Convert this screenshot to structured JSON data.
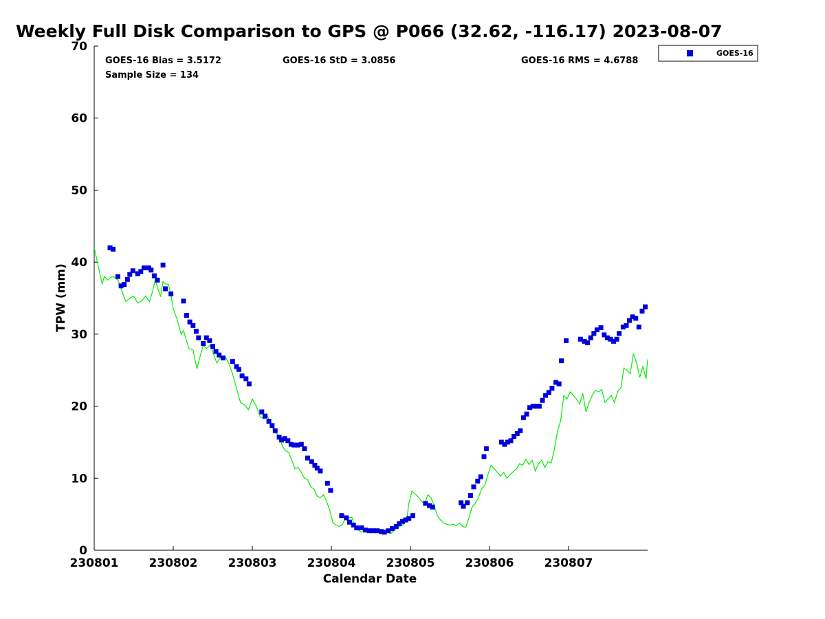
{
  "chart_data": {
    "type": "scatter",
    "title": "Weekly Full Disk Comparison to GPS @ P066 (32.62, -116.17) 2023-08-07",
    "xlabel": "Calendar Date",
    "ylabel": "TPW (mm)",
    "xlim": [
      0,
      7
    ],
    "ylim": [
      0,
      70
    ],
    "x_ticks": [
      0,
      1,
      2,
      3,
      4,
      5,
      6
    ],
    "x_tick_labels": [
      "230801",
      "230802",
      "230803",
      "230804",
      "230805",
      "230806",
      "230807"
    ],
    "y_ticks": [
      0,
      10,
      20,
      30,
      40,
      50,
      60,
      70
    ],
    "y_tick_labels": [
      "0",
      "10",
      "20",
      "30",
      "40",
      "50",
      "60",
      "70"
    ],
    "grid": false,
    "legend": {
      "position": "top-right",
      "entries": [
        "GOES-16"
      ]
    },
    "colors": {
      "goes": "#0000dd",
      "gps": "#00ee00"
    },
    "stats": {
      "bias": "GOES-16 Bias = 3.5172",
      "sample": "Sample Size = 134",
      "std": "GOES-16 StD = 3.0856",
      "rms": "GOES-16 RMS = 4.6788"
    },
    "series": [
      {
        "name": "GOES-16",
        "marker": "square",
        "points": [
          [
            0.2,
            42.0
          ],
          [
            0.24,
            41.8
          ],
          [
            0.3,
            38.0
          ],
          [
            0.34,
            36.7
          ],
          [
            0.38,
            36.9
          ],
          [
            0.42,
            37.6
          ],
          [
            0.45,
            38.3
          ],
          [
            0.49,
            38.8
          ],
          [
            0.55,
            38.4
          ],
          [
            0.59,
            38.7
          ],
          [
            0.63,
            39.2
          ],
          [
            0.69,
            39.2
          ],
          [
            0.72,
            38.9
          ],
          [
            0.76,
            38.1
          ],
          [
            0.8,
            37.5
          ],
          [
            0.87,
            39.6
          ],
          [
            0.9,
            36.3
          ],
          [
            0.97,
            35.6
          ],
          [
            1.13,
            34.6
          ],
          [
            1.17,
            32.6
          ],
          [
            1.21,
            31.7
          ],
          [
            1.25,
            31.2
          ],
          [
            1.29,
            30.4
          ],
          [
            1.32,
            29.5
          ],
          [
            1.38,
            28.7
          ],
          [
            1.42,
            29.5
          ],
          [
            1.46,
            29.1
          ],
          [
            1.5,
            28.3
          ],
          [
            1.54,
            27.6
          ],
          [
            1.58,
            27.1
          ],
          [
            1.63,
            26.7
          ],
          [
            1.75,
            26.2
          ],
          [
            1.8,
            25.5
          ],
          [
            1.83,
            25.1
          ],
          [
            1.87,
            24.2
          ],
          [
            1.92,
            23.8
          ],
          [
            1.96,
            23.1
          ],
          [
            2.12,
            19.2
          ],
          [
            2.16,
            18.6
          ],
          [
            2.21,
            17.9
          ],
          [
            2.25,
            17.3
          ],
          [
            2.29,
            16.6
          ],
          [
            2.34,
            15.7
          ],
          [
            2.37,
            15.3
          ],
          [
            2.41,
            15.5
          ],
          [
            2.45,
            15.2
          ],
          [
            2.49,
            14.7
          ],
          [
            2.53,
            14.6
          ],
          [
            2.57,
            14.6
          ],
          [
            2.62,
            14.7
          ],
          [
            2.66,
            14.1
          ],
          [
            2.7,
            12.8
          ],
          [
            2.75,
            12.3
          ],
          [
            2.79,
            11.8
          ],
          [
            2.82,
            11.4
          ],
          [
            2.86,
            11.0
          ],
          [
            2.95,
            9.3
          ],
          [
            2.99,
            8.3
          ],
          [
            3.13,
            4.8
          ],
          [
            3.19,
            4.5
          ],
          [
            3.23,
            3.9
          ],
          [
            3.28,
            3.5
          ],
          [
            3.32,
            3.1
          ],
          [
            3.38,
            3.1
          ],
          [
            3.43,
            2.8
          ],
          [
            3.48,
            2.7
          ],
          [
            3.53,
            2.7
          ],
          [
            3.58,
            2.7
          ],
          [
            3.63,
            2.6
          ],
          [
            3.67,
            2.5
          ],
          [
            3.72,
            2.7
          ],
          [
            3.77,
            3.0
          ],
          [
            3.82,
            3.3
          ],
          [
            3.86,
            3.7
          ],
          [
            3.9,
            4.0
          ],
          [
            3.94,
            4.2
          ],
          [
            3.98,
            4.4
          ],
          [
            4.03,
            4.8
          ],
          [
            4.19,
            6.5
          ],
          [
            4.24,
            6.2
          ],
          [
            4.28,
            6.0
          ],
          [
            4.64,
            6.6
          ],
          [
            4.67,
            6.1
          ],
          [
            4.72,
            6.6
          ],
          [
            4.76,
            7.6
          ],
          [
            4.8,
            8.8
          ],
          [
            4.85,
            9.6
          ],
          [
            4.89,
            10.2
          ],
          [
            4.93,
            13.0
          ],
          [
            4.96,
            14.1
          ],
          [
            5.15,
            15.0
          ],
          [
            5.19,
            14.7
          ],
          [
            5.23,
            15.0
          ],
          [
            5.27,
            15.2
          ],
          [
            5.31,
            15.8
          ],
          [
            5.35,
            16.2
          ],
          [
            5.39,
            16.6
          ],
          [
            5.43,
            18.4
          ],
          [
            5.47,
            18.9
          ],
          [
            5.51,
            19.8
          ],
          [
            5.55,
            20.0
          ],
          [
            5.59,
            20.0
          ],
          [
            5.63,
            20.0
          ],
          [
            5.67,
            20.8
          ],
          [
            5.71,
            21.5
          ],
          [
            5.75,
            21.9
          ],
          [
            5.79,
            22.5
          ],
          [
            5.84,
            23.3
          ],
          [
            5.88,
            23.1
          ],
          [
            5.91,
            26.3
          ],
          [
            5.97,
            29.1
          ],
          [
            6.15,
            29.3
          ],
          [
            6.2,
            29.0
          ],
          [
            6.24,
            28.8
          ],
          [
            6.28,
            29.5
          ],
          [
            6.32,
            30.1
          ],
          [
            6.36,
            30.6
          ],
          [
            6.41,
            30.9
          ],
          [
            6.45,
            29.9
          ],
          [
            6.49,
            29.5
          ],
          [
            6.53,
            29.3
          ],
          [
            6.57,
            29.0
          ],
          [
            6.61,
            29.3
          ],
          [
            6.64,
            30.1
          ],
          [
            6.69,
            31.0
          ],
          [
            6.73,
            31.2
          ],
          [
            6.77,
            31.9
          ],
          [
            6.81,
            32.4
          ],
          [
            6.85,
            32.2
          ],
          [
            6.89,
            31.0
          ],
          [
            6.93,
            33.2
          ],
          [
            6.97,
            33.8
          ]
        ]
      },
      {
        "name": "GPS",
        "marker": "line",
        "points": [
          [
            0.0,
            42.0
          ],
          [
            0.05,
            39.5
          ],
          [
            0.1,
            37.0
          ],
          [
            0.13,
            38.0
          ],
          [
            0.17,
            37.5
          ],
          [
            0.2,
            37.8
          ],
          [
            0.24,
            38.0
          ],
          [
            0.3,
            37.5
          ],
          [
            0.35,
            36.0
          ],
          [
            0.4,
            34.5
          ],
          [
            0.45,
            35.0
          ],
          [
            0.5,
            35.3
          ],
          [
            0.55,
            34.3
          ],
          [
            0.6,
            34.6
          ],
          [
            0.65,
            35.3
          ],
          [
            0.7,
            34.5
          ],
          [
            0.74,
            36.0
          ],
          [
            0.77,
            37.5
          ],
          [
            0.8,
            36.5
          ],
          [
            0.84,
            35.2
          ],
          [
            0.87,
            37.3
          ],
          [
            0.9,
            37.0
          ],
          [
            0.94,
            36.9
          ],
          [
            0.97,
            35.5
          ],
          [
            1.0,
            33.5
          ],
          [
            1.05,
            32.0
          ],
          [
            1.1,
            30.0
          ],
          [
            1.13,
            30.5
          ],
          [
            1.17,
            29.0
          ],
          [
            1.2,
            28.0
          ],
          [
            1.25,
            27.8
          ],
          [
            1.3,
            25.2
          ],
          [
            1.33,
            26.5
          ],
          [
            1.38,
            28.5
          ],
          [
            1.42,
            28.0
          ],
          [
            1.47,
            28.5
          ],
          [
            1.5,
            27.5
          ],
          [
            1.55,
            26.0
          ],
          [
            1.6,
            26.8
          ],
          [
            1.65,
            27.0
          ],
          [
            1.7,
            26.0
          ],
          [
            1.75,
            24.5
          ],
          [
            1.8,
            22.5
          ],
          [
            1.85,
            20.5
          ],
          [
            1.9,
            20.2
          ],
          [
            1.95,
            19.5
          ],
          [
            2.0,
            21.0
          ],
          [
            2.05,
            20.0
          ],
          [
            2.1,
            18.5
          ],
          [
            2.14,
            18.3
          ],
          [
            2.18,
            19.0
          ],
          [
            2.22,
            17.8
          ],
          [
            2.26,
            17.0
          ],
          [
            2.3,
            16.3
          ],
          [
            2.34,
            15.8
          ],
          [
            2.38,
            14.5
          ],
          [
            2.42,
            13.8
          ],
          [
            2.46,
            13.6
          ],
          [
            2.5,
            12.5
          ],
          [
            2.54,
            11.3
          ],
          [
            2.58,
            11.5
          ],
          [
            2.62,
            10.8
          ],
          [
            2.66,
            10.0
          ],
          [
            2.7,
            9.8
          ],
          [
            2.74,
            8.8
          ],
          [
            2.78,
            8.5
          ],
          [
            2.82,
            7.5
          ],
          [
            2.86,
            7.3
          ],
          [
            2.9,
            7.7
          ],
          [
            2.94,
            6.8
          ],
          [
            2.98,
            5.5
          ],
          [
            3.02,
            3.8
          ],
          [
            3.06,
            3.5
          ],
          [
            3.1,
            3.3
          ],
          [
            3.14,
            3.6
          ],
          [
            3.18,
            4.5
          ],
          [
            3.22,
            4.5
          ],
          [
            3.26,
            4.6
          ],
          [
            3.3,
            3.0
          ],
          [
            3.34,
            2.8
          ],
          [
            3.38,
            2.5
          ],
          [
            3.42,
            2.8
          ],
          [
            3.46,
            2.6
          ],
          [
            3.5,
            2.5
          ],
          [
            3.55,
            3.0
          ],
          [
            3.6,
            2.6
          ],
          [
            3.65,
            2.8
          ],
          [
            3.7,
            2.5
          ],
          [
            3.75,
            2.3
          ],
          [
            3.8,
            2.8
          ],
          [
            3.85,
            3.2
          ],
          [
            3.9,
            3.5
          ],
          [
            3.95,
            4.0
          ],
          [
            3.98,
            6.5
          ],
          [
            4.02,
            8.2
          ],
          [
            4.06,
            7.8
          ],
          [
            4.1,
            7.4
          ],
          [
            4.14,
            6.8
          ],
          [
            4.18,
            6.5
          ],
          [
            4.22,
            7.7
          ],
          [
            4.26,
            7.3
          ],
          [
            4.3,
            6.2
          ],
          [
            4.34,
            4.8
          ],
          [
            4.38,
            4.2
          ],
          [
            4.42,
            3.8
          ],
          [
            4.46,
            3.6
          ],
          [
            4.5,
            3.5
          ],
          [
            4.54,
            3.6
          ],
          [
            4.58,
            3.4
          ],
          [
            4.62,
            3.8
          ],
          [
            4.66,
            3.3
          ],
          [
            4.7,
            3.2
          ],
          [
            4.74,
            4.5
          ],
          [
            4.78,
            6.0
          ],
          [
            4.82,
            6.5
          ],
          [
            4.86,
            7.3
          ],
          [
            4.9,
            8.5
          ],
          [
            4.94,
            9.0
          ],
          [
            4.98,
            10.5
          ],
          [
            5.02,
            11.8
          ],
          [
            5.06,
            11.3
          ],
          [
            5.1,
            10.8
          ],
          [
            5.14,
            10.3
          ],
          [
            5.18,
            10.8
          ],
          [
            5.22,
            10.0
          ],
          [
            5.26,
            10.5
          ],
          [
            5.3,
            10.9
          ],
          [
            5.34,
            11.3
          ],
          [
            5.38,
            12.0
          ],
          [
            5.42,
            11.8
          ],
          [
            5.46,
            12.6
          ],
          [
            5.5,
            11.9
          ],
          [
            5.54,
            12.5
          ],
          [
            5.58,
            11.0
          ],
          [
            5.62,
            12.0
          ],
          [
            5.66,
            12.5
          ],
          [
            5.7,
            11.5
          ],
          [
            5.74,
            12.3
          ],
          [
            5.78,
            12.1
          ],
          [
            5.82,
            14.0
          ],
          [
            5.86,
            16.5
          ],
          [
            5.9,
            18.0
          ],
          [
            5.94,
            21.5
          ],
          [
            5.98,
            21.0
          ],
          [
            6.02,
            22.0
          ],
          [
            6.06,
            21.5
          ],
          [
            6.1,
            21.0
          ],
          [
            6.14,
            20.3
          ],
          [
            6.18,
            21.8
          ],
          [
            6.22,
            19.2
          ],
          [
            6.26,
            20.5
          ],
          [
            6.3,
            21.5
          ],
          [
            6.34,
            22.2
          ],
          [
            6.38,
            22.0
          ],
          [
            6.42,
            22.3
          ],
          [
            6.46,
            20.5
          ],
          [
            6.5,
            21.0
          ],
          [
            6.54,
            21.5
          ],
          [
            6.58,
            20.5
          ],
          [
            6.62,
            22.0
          ],
          [
            6.66,
            22.5
          ],
          [
            6.7,
            25.3
          ],
          [
            6.74,
            25.0
          ],
          [
            6.78,
            24.5
          ],
          [
            6.82,
            27.3
          ],
          [
            6.86,
            26.0
          ],
          [
            6.9,
            24.0
          ],
          [
            6.94,
            25.5
          ],
          [
            6.98,
            23.8
          ],
          [
            7.0,
            26.5
          ]
        ]
      }
    ]
  }
}
